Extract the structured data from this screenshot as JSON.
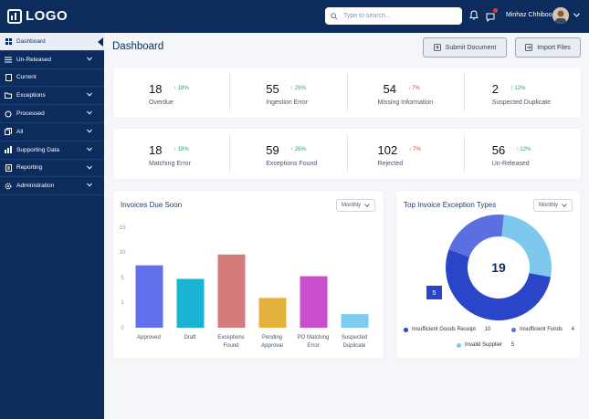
{
  "header": {
    "logo_text": "LOGO",
    "search_placeholder": "Type to search...",
    "user_name": "Minhaz Chhiboo"
  },
  "sidebar": {
    "items": [
      {
        "label": "Dashboard",
        "icon": "grid-icon",
        "active": true
      },
      {
        "label": "Un-Released",
        "icon": "list-icon"
      },
      {
        "label": "Current",
        "icon": "document-icon"
      },
      {
        "label": "Exceptions",
        "icon": "folder-icon"
      },
      {
        "label": "Processed",
        "icon": "cycle-icon"
      },
      {
        "label": "All",
        "icon": "files-icon"
      },
      {
        "label": "Supporting Data",
        "icon": "chart-icon"
      },
      {
        "label": "Reporting",
        "icon": "report-icon"
      },
      {
        "label": "Administration",
        "icon": "gear-icon"
      }
    ]
  },
  "main": {
    "title": "Dashboard",
    "submit_label": "Submit Document",
    "import_label": "Import Files"
  },
  "kpi_row1": [
    {
      "value": "18",
      "delta": "18%",
      "direction": "up",
      "label": "Overdue"
    },
    {
      "value": "55",
      "delta": "25%",
      "direction": "up",
      "label": "Ingestion Error"
    },
    {
      "value": "54",
      "delta": "7%",
      "direction": "down",
      "label": "Missing Information"
    },
    {
      "value": "2",
      "delta": "12%",
      "direction": "up",
      "label": "Suspected Duplicate"
    }
  ],
  "kpi_row2": [
    {
      "value": "18",
      "delta": "18%",
      "direction": "up",
      "label": "Matching Error"
    },
    {
      "value": "59",
      "delta": "25%",
      "direction": "up",
      "label": "Exceptions Found"
    },
    {
      "value": "102",
      "delta": "7%",
      "direction": "down",
      "label": "Rejected"
    },
    {
      "value": "56",
      "delta": "12%",
      "direction": "up",
      "label": "Un-Released"
    }
  ],
  "invoices_panel": {
    "title": "Invoices Due Soon",
    "period": "Monthly"
  },
  "exceptions_panel": {
    "title": "Top Invoice Exception Types",
    "period": "Monthly",
    "total": "19",
    "tooltip_value": "5",
    "legend": [
      {
        "label": "Insufficient Goods Receipt",
        "value": "10",
        "color": "#2b45c9"
      },
      {
        "label": "Insufficient Funds",
        "value": "4",
        "color": "#5b6fe0"
      },
      {
        "label": "Invalid Supplier",
        "value": "5",
        "color": "#7ec8ee"
      }
    ]
  },
  "chart_data": [
    {
      "type": "bar",
      "title": "Invoices Due Soon",
      "categories": [
        "Approved",
        "Draft",
        "Exceptions Found",
        "Pending Approval",
        "PO Matching Error",
        "Suspected Duplicate"
      ],
      "values": [
        11.5,
        9,
        13.5,
        5.5,
        9.5,
        2.5
      ],
      "colors": [
        "#6370ee",
        "#1ab3d4",
        "#d47c7c",
        "#e4b33d",
        "#c94fcc",
        "#7ecbf0"
      ],
      "yticks": [
        "0",
        "1",
        "5",
        "10",
        "15"
      ],
      "ylim": [
        0,
        20
      ]
    },
    {
      "type": "pie",
      "title": "Top Invoice Exception Types",
      "labels": [
        "Insufficient Goods Receipt",
        "Insufficient Funds",
        "Invalid Supplier"
      ],
      "values": [
        10,
        4,
        5
      ],
      "colors": [
        "#2b45c9",
        "#5b6fe0",
        "#7ec8ee"
      ]
    }
  ]
}
